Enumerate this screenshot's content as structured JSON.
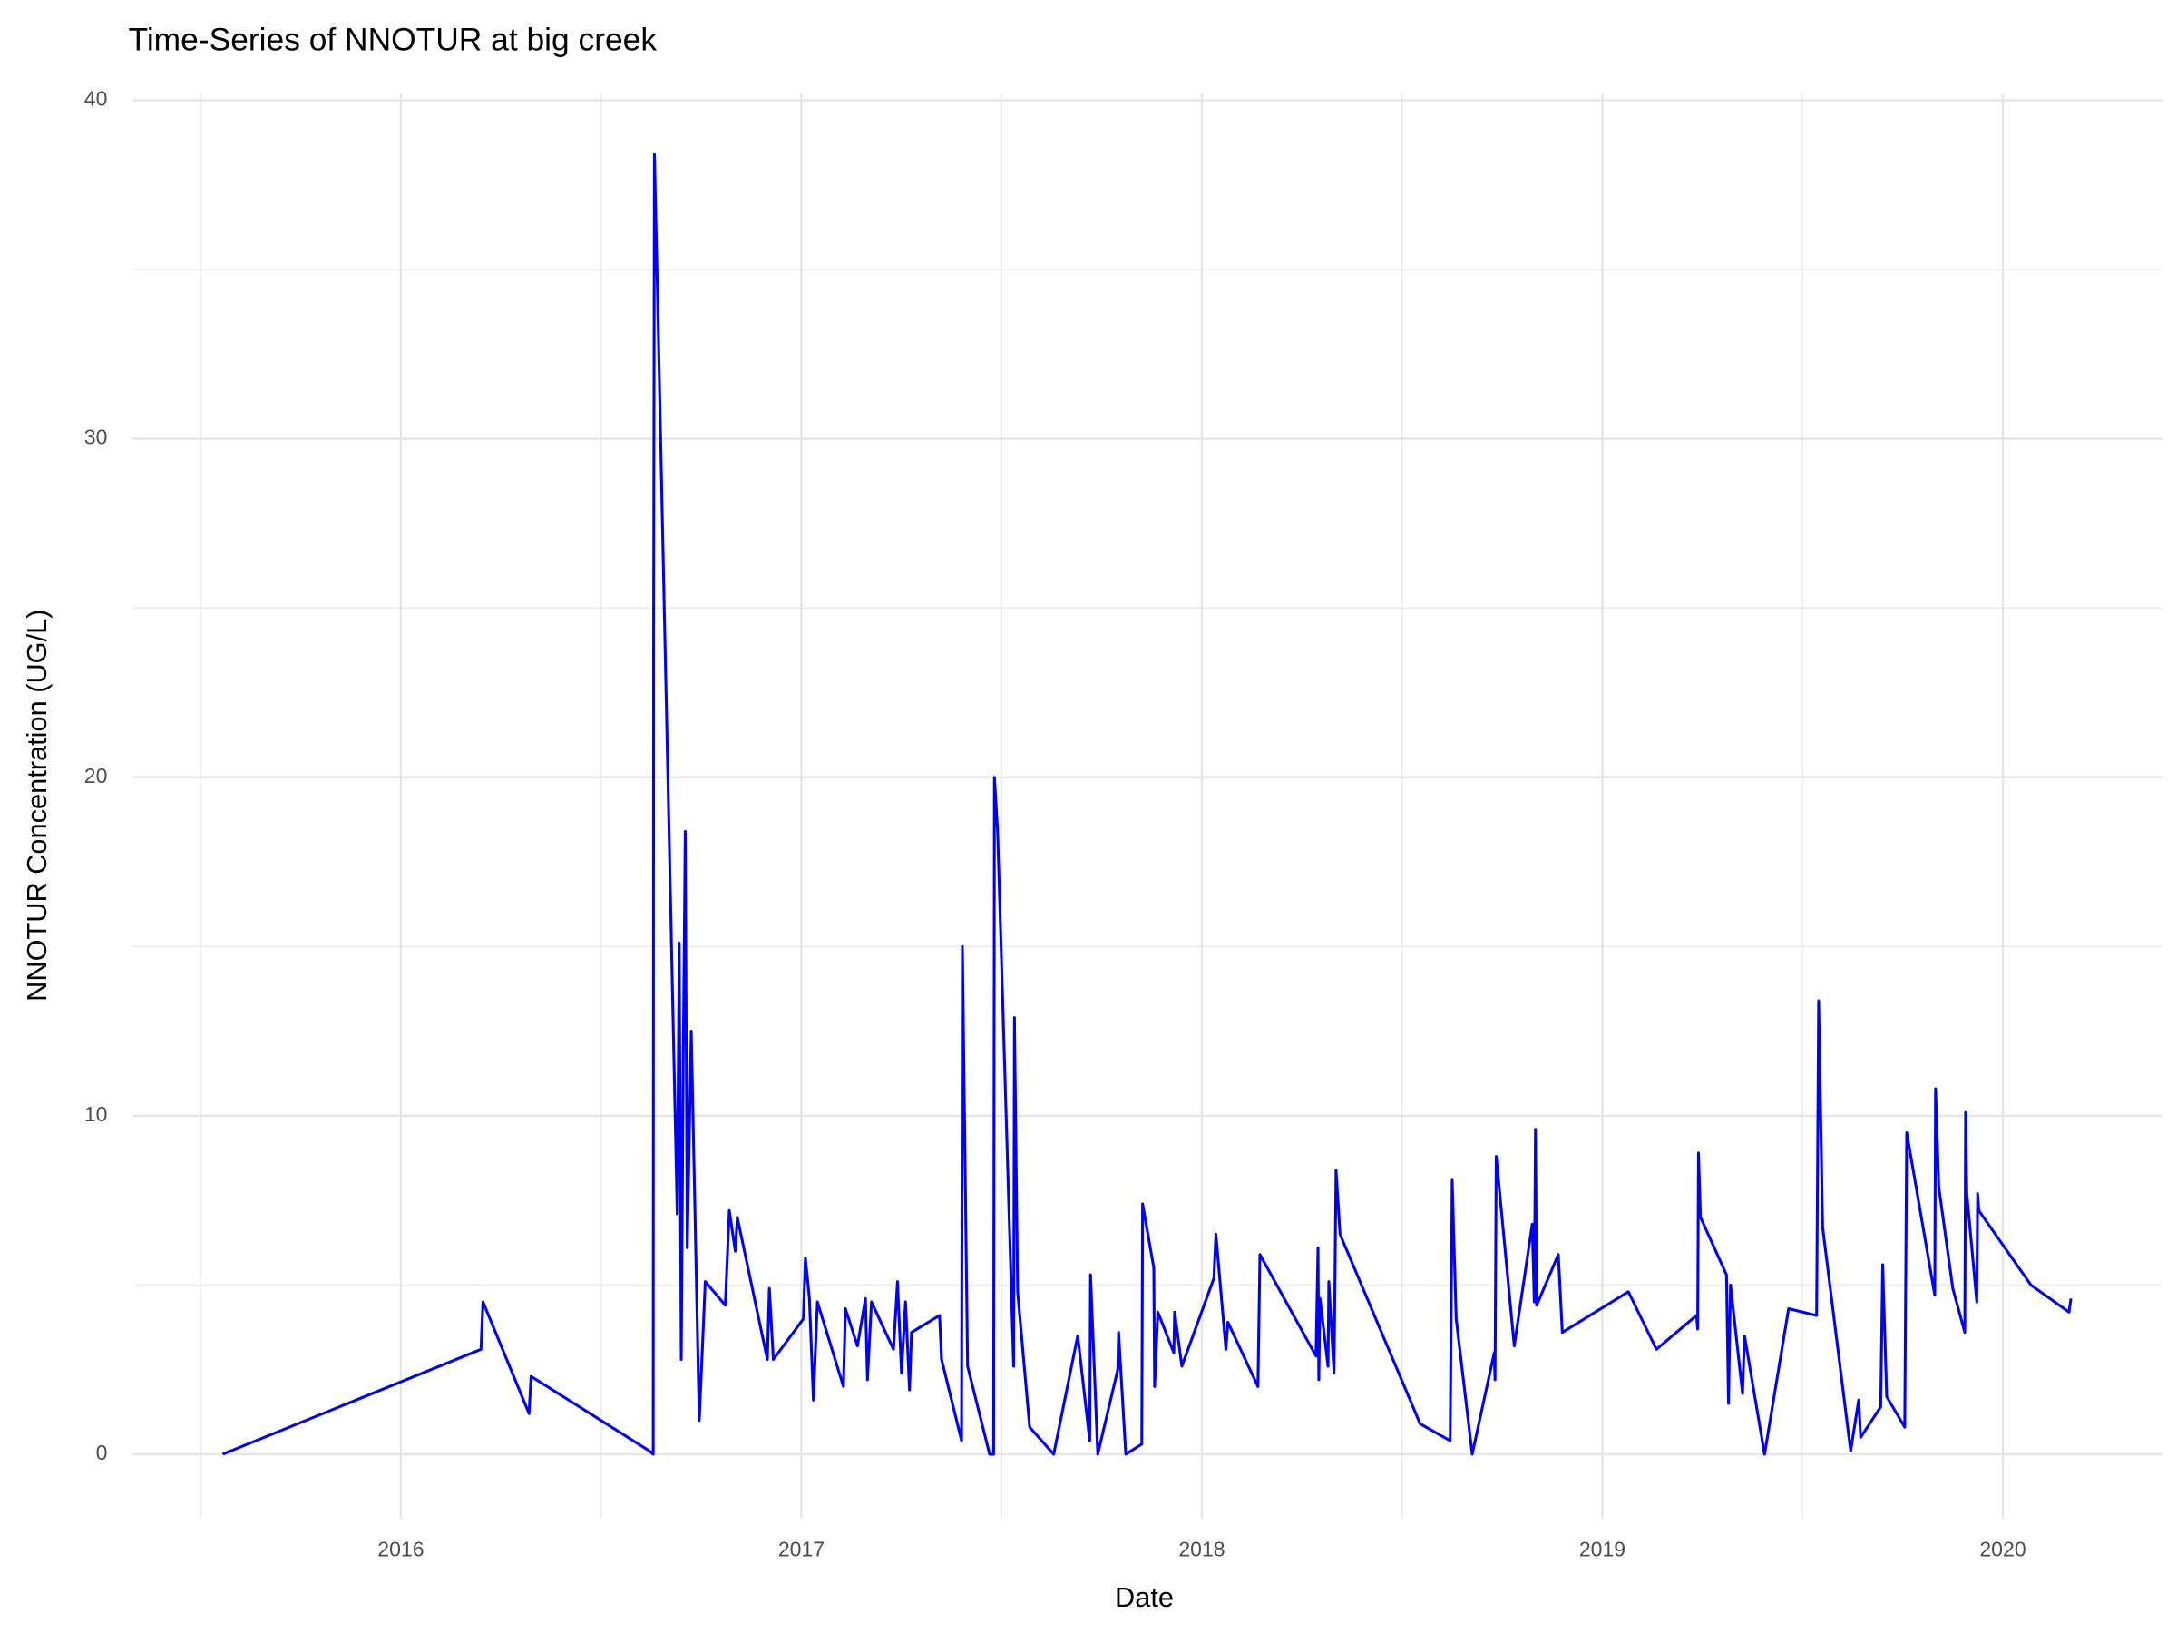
{
  "chart_data": {
    "type": "line",
    "title": "Time-Series of NNOTUR at big creek",
    "x_label": "Date",
    "y_label": "NNOTUR Concentration (UG/L)",
    "xlim": [
      2015.33,
      2020.4
    ],
    "xticks": [
      2016,
      2017,
      2018,
      2019,
      2020
    ],
    "ylim": [
      -1.9,
      40.2
    ],
    "yticks": [
      0,
      10,
      20,
      30,
      40
    ],
    "grid": true,
    "series": [
      {
        "name": "NNOTUR",
        "color": "#0000ff",
        "x": [
          2015.555,
          2016.2,
          2016.205,
          2016.32,
          2016.325,
          2016.62,
          2016.63,
          2016.631,
          2016.633,
          2016.64,
          2016.69,
          2016.695,
          2016.7,
          2016.705,
          2016.71,
          2016.715,
          2016.725,
          2016.745,
          2016.76,
          2016.81,
          2016.82,
          2016.835,
          2016.84,
          2016.915,
          2016.92,
          2016.93,
          2017.005,
          2017.01,
          2017.02,
          2017.03,
          2017.04,
          2017.105,
          2017.11,
          2017.14,
          2017.16,
          2017.165,
          2017.175,
          2017.23,
          2017.24,
          2017.25,
          2017.26,
          2017.27,
          2017.275,
          2017.345,
          2017.35,
          2017.4,
          2017.402,
          2017.415,
          2017.47,
          2017.48,
          2017.482,
          2017.49,
          2017.53,
          2017.532,
          2017.54,
          2017.57,
          2017.63,
          2017.69,
          2017.72,
          2017.722,
          2017.74,
          2017.79,
          2017.792,
          2017.81,
          2017.85,
          2017.852,
          2017.88,
          2017.882,
          2017.89,
          2017.93,
          2017.932,
          2017.95,
          2018.03,
          2018.035,
          2018.06,
          2018.065,
          2018.14,
          2018.145,
          2018.285,
          2018.29,
          2018.292,
          2018.295,
          2018.315,
          2018.317,
          2018.33,
          2018.335,
          2018.345,
          2018.545,
          2018.62,
          2018.625,
          2018.635,
          2018.675,
          2018.73,
          2018.732,
          2018.735,
          2018.78,
          2018.825,
          2018.83,
          2018.833,
          2018.836,
          2018.89,
          2018.9,
          2019.065,
          2019.135,
          2019.235,
          2019.238,
          2019.24,
          2019.245,
          2019.31,
          2019.315,
          2019.32,
          2019.35,
          2019.355,
          2019.405,
          2019.465,
          2019.535,
          2019.54,
          2019.55,
          2019.62,
          2019.64,
          2019.645,
          2019.695,
          2019.7,
          2019.71,
          2019.755,
          2019.76,
          2019.83,
          2019.832,
          2019.84,
          2019.875,
          2019.905,
          2019.907,
          2019.91,
          2019.935,
          2019.937,
          2019.94,
          2020.07,
          2020.165,
          2020.17
        ],
        "values": [
          0,
          3.1,
          4.5,
          1.2,
          2.3,
          0.1,
          0,
          24,
          38.4,
          34.7,
          7.1,
          15.1,
          2.8,
          11.6,
          18.4,
          6.1,
          12.5,
          1.0,
          5.1,
          4.4,
          7.2,
          6.0,
          7.0,
          2.8,
          4.9,
          2.8,
          4.0,
          5.8,
          4.6,
          1.6,
          4.5,
          2.0,
          4.3,
          3.2,
          4.6,
          2.2,
          4.5,
          3.1,
          5.1,
          2.4,
          4.5,
          1.9,
          3.6,
          4.1,
          2.8,
          0.4,
          15.0,
          2.6,
          0,
          0,
          20.0,
          18.4,
          2.6,
          12.9,
          4.8,
          0.8,
          0,
          3.5,
          0.4,
          5.3,
          0,
          2.5,
          3.6,
          0,
          0.3,
          7.4,
          5.5,
          2.0,
          4.2,
          3.0,
          4.2,
          2.6,
          5.2,
          6.5,
          3.1,
          3.9,
          2.0,
          5.9,
          2.9,
          6.1,
          2.2,
          4.6,
          2.6,
          5.1,
          2.4,
          8.4,
          6.5,
          0.9,
          0.4,
          8.1,
          4.0,
          0,
          3.0,
          2.2,
          8.8,
          3.2,
          6.8,
          4.5,
          9.6,
          4.4,
          5.9,
          3.6,
          4.8,
          3.1,
          4.1,
          3.7,
          8.9,
          7.0,
          5.3,
          1.5,
          5.0,
          1.8,
          3.5,
          0,
          4.3,
          4.1,
          13.4,
          6.7,
          0.1,
          1.6,
          0.5,
          1.4,
          5.6,
          1.7,
          0.8,
          9.5,
          4.7,
          10.8,
          7.9,
          4.9,
          3.6,
          10.1,
          7.7,
          4.5,
          7.7,
          7.2,
          5.0,
          4.2,
          4.6
        ]
      }
    ]
  }
}
